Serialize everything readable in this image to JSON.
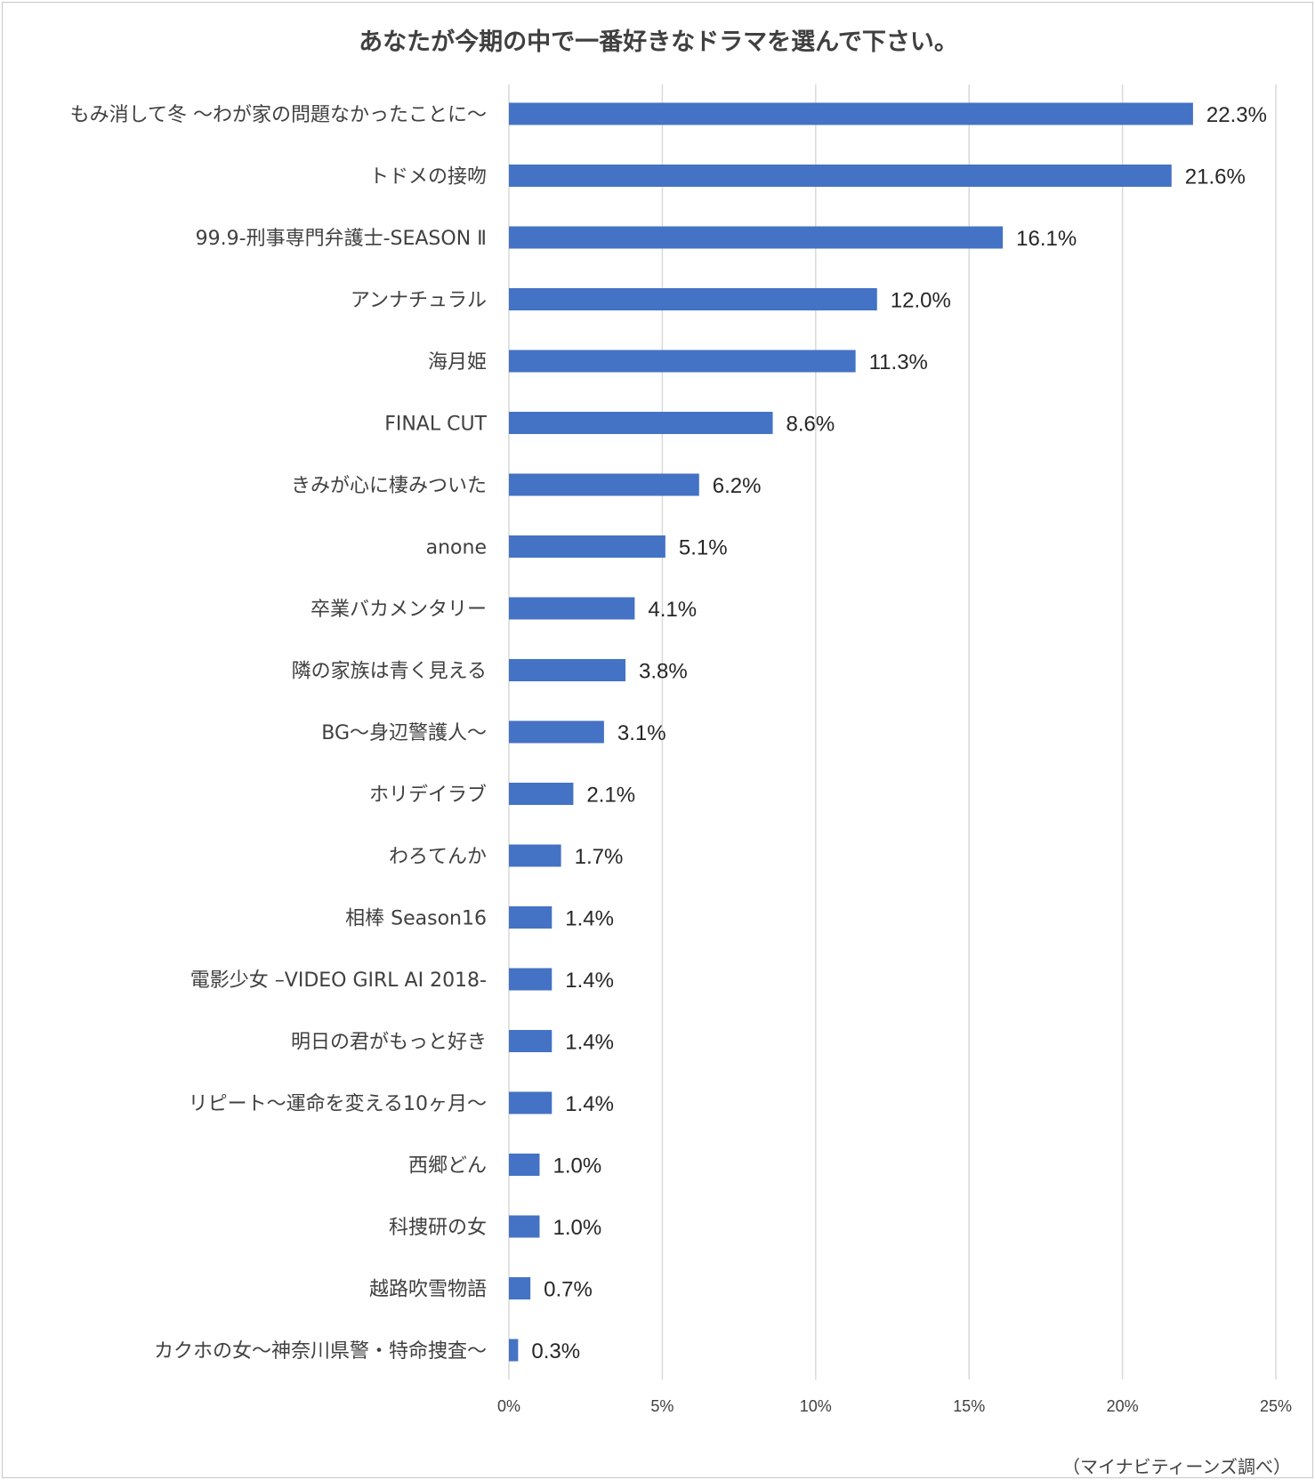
{
  "chart_data": {
    "type": "bar",
    "orientation": "horizontal",
    "title": "あなたが今期の中で一番好きなドラマを選んで下さい。",
    "source": "（マイナビティーンズ調べ）",
    "categories": [
      "もみ消して冬 〜わが家の問題なかったことに〜",
      "トドメの接吻",
      "99.9-刑事専門弁護士-SEASON Ⅱ",
      "アンナチュラル",
      "海月姫",
      "FINAL CUT",
      "きみが心に棲みついた",
      "anone",
      "卒業バカメンタリー",
      "隣の家族は青く見える",
      "BG〜身辺警護人〜",
      "ホリデイラブ",
      "わろてんか",
      "相棒 Season16",
      "電影少女 –VIDEO GIRL AI 2018-",
      "明日の君がもっと好き",
      "リピート〜運命を変える10ヶ月〜",
      "西郷どん",
      "科捜研の女",
      "越路吹雪物語",
      "カクホの女〜神奈川県警・特命捜査〜"
    ],
    "values": [
      22.3,
      21.6,
      16.1,
      12.0,
      11.3,
      8.6,
      6.2,
      5.1,
      4.1,
      3.8,
      3.1,
      2.1,
      1.7,
      1.4,
      1.4,
      1.4,
      1.4,
      1.0,
      1.0,
      0.7,
      0.3
    ],
    "value_labels": [
      "22.3%",
      "21.6%",
      "16.1%",
      "12.0%",
      "11.3%",
      "8.6%",
      "6.2%",
      "5.1%",
      "4.1%",
      "3.8%",
      "3.1%",
      "2.1%",
      "1.7%",
      "1.4%",
      "1.4%",
      "1.4%",
      "1.4%",
      "1.0%",
      "1.0%",
      "0.7%",
      "0.3%"
    ],
    "xlim": [
      0,
      25
    ],
    "xticks": [
      0,
      5,
      10,
      15,
      20,
      25
    ],
    "xtick_labels": [
      "0%",
      "5%",
      "10%",
      "15%",
      "20%",
      "25%"
    ],
    "grid": "vertical",
    "bar_color": "#4472c4",
    "grid_color": "#d9d9d9",
    "text_color": "#404040"
  }
}
